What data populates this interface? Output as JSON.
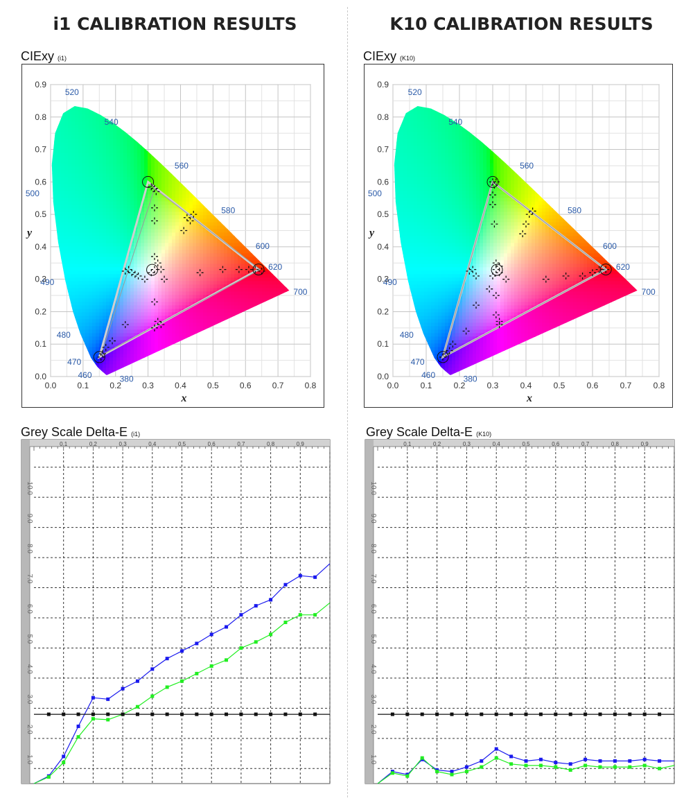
{
  "headings": {
    "left": "i1 CALIBRATION RESULTS",
    "right": "K10 CALIBRATION RESULTS"
  },
  "panels": {
    "cie_left": {
      "title": "CIExy",
      "tag": "(i1)"
    },
    "cie_right": {
      "title": "CIExy",
      "tag": "(K10)"
    },
    "de_left": {
      "title": "Grey Scale Delta-E",
      "tag": "(i1)"
    },
    "de_right": {
      "title": "Grey Scale Delta-E",
      "tag": "(K10)"
    }
  },
  "colors": {
    "blue_series": "#1a1aee",
    "green_series": "#22ee22",
    "black_series": "#111111",
    "wavelength_labels": "#2a5aa8"
  },
  "chart_data": [
    {
      "type": "scatter",
      "panel": "cie_left",
      "xlabel": "x",
      "ylabel": "y",
      "xlim": [
        0.0,
        0.8
      ],
      "ylim": [
        0.0,
        0.9
      ],
      "x_ticks": [
        "0.0",
        "0.1",
        "0.2",
        "0.3",
        "0.4",
        "0.5",
        "0.6",
        "0.7",
        "0.8"
      ],
      "y_ticks": [
        "0.0",
        "0.1",
        "0.2",
        "0.3",
        "0.4",
        "0.5",
        "0.6",
        "0.7",
        "0.8",
        "0.9"
      ],
      "grid": true,
      "wavelength_labels": [
        "380",
        "460",
        "470",
        "480",
        "490",
        "500",
        "520",
        "540",
        "560",
        "580",
        "600",
        "620",
        "700"
      ],
      "target_gamut": [
        [
          0.64,
          0.33
        ],
        [
          0.3,
          0.6
        ],
        [
          0.15,
          0.06
        ]
      ],
      "measured_gamut": [
        [
          0.645,
          0.33
        ],
        [
          0.32,
          0.58
        ],
        [
          0.155,
          0.065
        ]
      ],
      "white_point": [
        0.3127,
        0.329
      ],
      "points": [
        [
          0.32,
          0.58
        ],
        [
          0.31,
          0.585
        ],
        [
          0.325,
          0.57
        ],
        [
          0.32,
          0.52
        ],
        [
          0.32,
          0.48
        ],
        [
          0.42,
          0.49
        ],
        [
          0.43,
          0.48
        ],
        [
          0.41,
          0.45
        ],
        [
          0.44,
          0.5
        ],
        [
          0.32,
          0.37
        ],
        [
          0.33,
          0.35
        ],
        [
          0.34,
          0.33
        ],
        [
          0.32,
          0.33
        ],
        [
          0.31,
          0.32
        ],
        [
          0.35,
          0.3
        ],
        [
          0.29,
          0.3
        ],
        [
          0.27,
          0.31
        ],
        [
          0.25,
          0.32
        ],
        [
          0.24,
          0.33
        ],
        [
          0.23,
          0.325
        ],
        [
          0.26,
          0.315
        ],
        [
          0.46,
          0.32
        ],
        [
          0.53,
          0.33
        ],
        [
          0.58,
          0.33
        ],
        [
          0.61,
          0.33
        ],
        [
          0.63,
          0.33
        ],
        [
          0.65,
          0.325
        ],
        [
          0.32,
          0.23
        ],
        [
          0.33,
          0.17
        ],
        [
          0.34,
          0.16
        ],
        [
          0.32,
          0.15
        ],
        [
          0.23,
          0.16
        ],
        [
          0.19,
          0.11
        ],
        [
          0.17,
          0.09
        ],
        [
          0.16,
          0.07
        ],
        [
          0.155,
          0.06
        ]
      ]
    },
    {
      "type": "scatter",
      "panel": "cie_right",
      "xlabel": "x",
      "ylabel": "y",
      "xlim": [
        0.0,
        0.8
      ],
      "ylim": [
        0.0,
        0.9
      ],
      "x_ticks": [
        "0.0",
        "0.1",
        "0.2",
        "0.3",
        "0.4",
        "0.5",
        "0.6",
        "0.7",
        "0.8"
      ],
      "y_ticks": [
        "0.0",
        "0.1",
        "0.2",
        "0.3",
        "0.4",
        "0.5",
        "0.6",
        "0.7",
        "0.8",
        "0.9"
      ],
      "grid": true,
      "wavelength_labels": [
        "380",
        "460",
        "470",
        "480",
        "490",
        "500",
        "520",
        "540",
        "560",
        "580",
        "600",
        "620",
        "700"
      ],
      "target_gamut": [
        [
          0.64,
          0.33
        ],
        [
          0.3,
          0.6
        ],
        [
          0.15,
          0.06
        ]
      ],
      "measured_gamut": [
        [
          0.64,
          0.33
        ],
        [
          0.3,
          0.6
        ],
        [
          0.15,
          0.06
        ]
      ],
      "white_point": [
        0.3127,
        0.329
      ],
      "points": [
        [
          0.3,
          0.6
        ],
        [
          0.305,
          0.59
        ],
        [
          0.31,
          0.6
        ],
        [
          0.3,
          0.56
        ],
        [
          0.3,
          0.53
        ],
        [
          0.305,
          0.47
        ],
        [
          0.41,
          0.5
        ],
        [
          0.42,
          0.51
        ],
        [
          0.4,
          0.47
        ],
        [
          0.39,
          0.44
        ],
        [
          0.31,
          0.35
        ],
        [
          0.32,
          0.34
        ],
        [
          0.31,
          0.33
        ],
        [
          0.32,
          0.32
        ],
        [
          0.3,
          0.31
        ],
        [
          0.34,
          0.3
        ],
        [
          0.29,
          0.27
        ],
        [
          0.31,
          0.25
        ],
        [
          0.24,
          0.33
        ],
        [
          0.23,
          0.325
        ],
        [
          0.25,
          0.31
        ],
        [
          0.46,
          0.3
        ],
        [
          0.52,
          0.31
        ],
        [
          0.57,
          0.31
        ],
        [
          0.6,
          0.32
        ],
        [
          0.62,
          0.33
        ],
        [
          0.64,
          0.33
        ],
        [
          0.31,
          0.19
        ],
        [
          0.32,
          0.17
        ],
        [
          0.32,
          0.16
        ],
        [
          0.25,
          0.22
        ],
        [
          0.22,
          0.14
        ],
        [
          0.18,
          0.1
        ],
        [
          0.17,
          0.08
        ],
        [
          0.16,
          0.07
        ],
        [
          0.15,
          0.06
        ]
      ]
    },
    {
      "type": "line",
      "panel": "de_left",
      "xlim": [
        0.0,
        1.0
      ],
      "ylim": [
        0.0,
        11.0
      ],
      "x_ticks": [
        "0.1",
        "0.2",
        "0.3",
        "0.4",
        "0.5",
        "0.6",
        "0.7",
        "0.8",
        "0.9"
      ],
      "y_ticks": [
        "1.0",
        "2.0",
        "3.0",
        "4.0",
        "5.0",
        "6.0",
        "7.0",
        "8.0",
        "9.0",
        "10.0"
      ],
      "grid": true,
      "x": [
        0,
        0.05,
        0.1,
        0.15,
        0.2,
        0.25,
        0.3,
        0.35,
        0.4,
        0.45,
        0.5,
        0.55,
        0.6,
        0.65,
        0.7,
        0.75,
        0.8,
        0.85,
        0.9,
        0.95,
        1.0
      ],
      "series": [
        {
          "color": "blue",
          "values": [
            0.0,
            0.25,
            0.9,
            1.9,
            2.85,
            2.8,
            3.15,
            3.4,
            3.8,
            4.15,
            4.4,
            4.65,
            4.95,
            5.2,
            5.6,
            5.9,
            6.1,
            6.6,
            6.9,
            6.85,
            7.3
          ]
        },
        {
          "color": "green",
          "values": [
            0.0,
            0.22,
            0.7,
            1.55,
            2.15,
            2.12,
            2.3,
            2.55,
            2.9,
            3.2,
            3.4,
            3.65,
            3.9,
            4.1,
            4.5,
            4.7,
            4.95,
            5.35,
            5.6,
            5.6,
            6.0
          ]
        },
        {
          "color": "black",
          "values": [
            2.3,
            2.3,
            2.3,
            2.3,
            2.3,
            2.3,
            2.3,
            2.3,
            2.3,
            2.3,
            2.3,
            2.3,
            2.3,
            2.3,
            2.3,
            2.3,
            2.3,
            2.3,
            2.3,
            2.3,
            2.3
          ]
        }
      ]
    },
    {
      "type": "line",
      "panel": "de_right",
      "xlim": [
        0.0,
        1.0
      ],
      "ylim": [
        0.0,
        11.0
      ],
      "x_ticks": [
        "0.1",
        "0.2",
        "0.3",
        "0.4",
        "0.5",
        "0.6",
        "0.7",
        "0.8",
        "0.9"
      ],
      "y_ticks": [
        "1.0",
        "2.0",
        "3.0",
        "4.0",
        "5.0",
        "6.0",
        "7.0",
        "8.0",
        "9.0",
        "10.0"
      ],
      "grid": true,
      "x": [
        0,
        0.05,
        0.1,
        0.15,
        0.2,
        0.25,
        0.3,
        0.35,
        0.4,
        0.45,
        0.5,
        0.55,
        0.6,
        0.65,
        0.7,
        0.75,
        0.8,
        0.85,
        0.9,
        0.95,
        1.0
      ],
      "series": [
        {
          "color": "blue",
          "values": [
            0.0,
            0.4,
            0.3,
            0.8,
            0.45,
            0.4,
            0.55,
            0.75,
            1.15,
            0.9,
            0.75,
            0.8,
            0.7,
            0.65,
            0.8,
            0.75,
            0.75,
            0.75,
            0.8,
            0.75,
            0.75
          ]
        },
        {
          "color": "green",
          "values": [
            0.0,
            0.35,
            0.25,
            0.85,
            0.4,
            0.3,
            0.4,
            0.55,
            0.85,
            0.65,
            0.6,
            0.6,
            0.55,
            0.45,
            0.6,
            0.55,
            0.55,
            0.55,
            0.6,
            0.5,
            0.6
          ]
        },
        {
          "color": "black",
          "values": [
            2.3,
            2.3,
            2.3,
            2.3,
            2.3,
            2.3,
            2.3,
            2.3,
            2.3,
            2.3,
            2.3,
            2.3,
            2.3,
            2.3,
            2.3,
            2.3,
            2.3,
            2.3,
            2.3,
            2.3,
            2.3
          ]
        }
      ]
    }
  ]
}
